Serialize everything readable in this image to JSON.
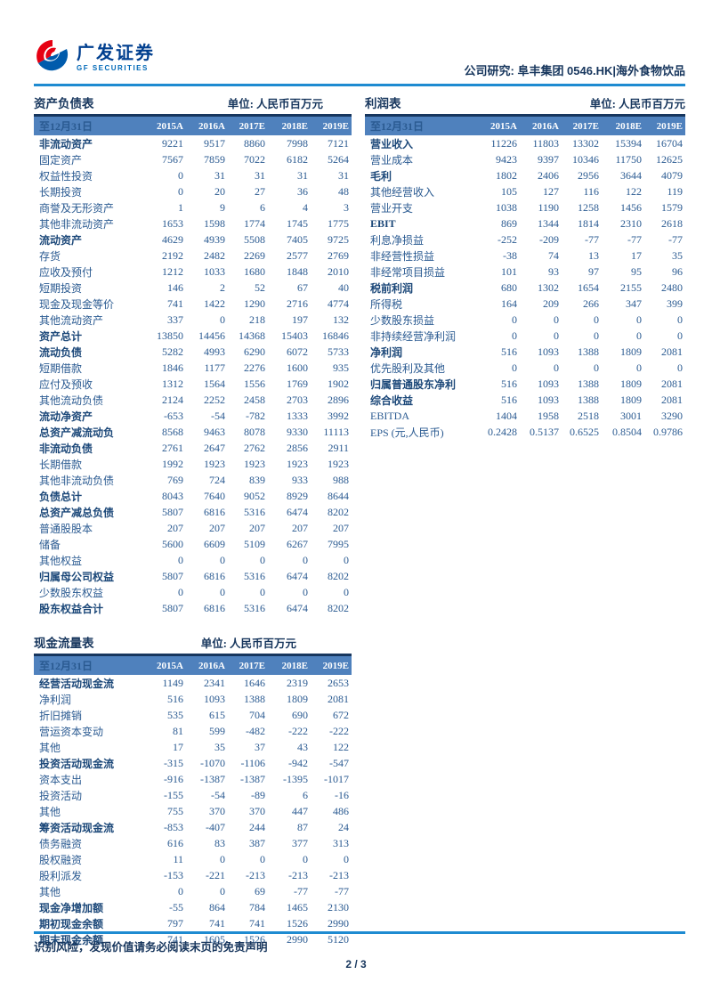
{
  "header": {
    "logo_cn": "广发证券",
    "logo_en": "GF SECURITIES",
    "research_line": "公司研究: 阜丰集团 0546.HK|海外食物饮品"
  },
  "colors": {
    "band_bg": "#4f81bd",
    "band_border": "#17365e",
    "body_text": "#2a5a91",
    "heading_text": "#17365d",
    "rule_blue": "#1e8bd1",
    "logo_red": "#e60012",
    "logo_blue": "#005bac"
  },
  "tables": {
    "balance_sheet": {
      "title": "资产负债表",
      "unit": "单位: 人民币百万元",
      "date_header": "至12月31日",
      "years": [
        "2015A",
        "2016A",
        "2017E",
        "2018E",
        "2019E"
      ],
      "rows": [
        {
          "label": "非流动资产",
          "bold": true,
          "values": [
            "9221",
            "9517",
            "8860",
            "7998",
            "7121"
          ]
        },
        {
          "label": "固定资产",
          "bold": false,
          "values": [
            "7567",
            "7859",
            "7022",
            "6182",
            "5264"
          ]
        },
        {
          "label": "权益性投资",
          "bold": false,
          "values": [
            "0",
            "31",
            "31",
            "31",
            "31"
          ]
        },
        {
          "label": "长期投资",
          "bold": false,
          "values": [
            "0",
            "20",
            "27",
            "36",
            "48"
          ]
        },
        {
          "label": "商誉及无形资产",
          "bold": false,
          "values": [
            "1",
            "9",
            "6",
            "4",
            "3"
          ]
        },
        {
          "label": "其他非流动资产",
          "bold": false,
          "values": [
            "1653",
            "1598",
            "1774",
            "1745",
            "1775"
          ]
        },
        {
          "label": "流动资产",
          "bold": true,
          "values": [
            "4629",
            "4939",
            "5508",
            "7405",
            "9725"
          ]
        },
        {
          "label": "存货",
          "bold": false,
          "values": [
            "2192",
            "2482",
            "2269",
            "2577",
            "2769"
          ]
        },
        {
          "label": "应收及预付",
          "bold": false,
          "values": [
            "1212",
            "1033",
            "1680",
            "1848",
            "2010"
          ]
        },
        {
          "label": "短期投资",
          "bold": false,
          "values": [
            "146",
            "2",
            "52",
            "67",
            "40"
          ]
        },
        {
          "label": "现金及现金等价",
          "bold": false,
          "values": [
            "741",
            "1422",
            "1290",
            "2716",
            "4774"
          ]
        },
        {
          "label": "其他流动资产",
          "bold": false,
          "values": [
            "337",
            "0",
            "218",
            "197",
            "132"
          ]
        },
        {
          "label": "资产总计",
          "bold": true,
          "values": [
            "13850",
            "14456",
            "14368",
            "15403",
            "16846"
          ]
        },
        {
          "label": "流动负债",
          "bold": true,
          "values": [
            "5282",
            "4993",
            "6290",
            "6072",
            "5733"
          ]
        },
        {
          "label": "短期借款",
          "bold": false,
          "values": [
            "1846",
            "1177",
            "2276",
            "1600",
            "935"
          ]
        },
        {
          "label": "应付及预收",
          "bold": false,
          "values": [
            "1312",
            "1564",
            "1556",
            "1769",
            "1902"
          ]
        },
        {
          "label": "其他流动负债",
          "bold": false,
          "values": [
            "2124",
            "2252",
            "2458",
            "2703",
            "2896"
          ]
        },
        {
          "label": "流动净资产",
          "bold": true,
          "values": [
            "-653",
            "-54",
            "-782",
            "1333",
            "3992"
          ]
        },
        {
          "label": "总资产减流动负",
          "bold": true,
          "values": [
            "8568",
            "9463",
            "8078",
            "9330",
            "11113"
          ]
        },
        {
          "label": "非流动负债",
          "bold": true,
          "values": [
            "2761",
            "2647",
            "2762",
            "2856",
            "2911"
          ]
        },
        {
          "label": "长期借款",
          "bold": false,
          "values": [
            "1992",
            "1923",
            "1923",
            "1923",
            "1923"
          ]
        },
        {
          "label": "其他非流动负债",
          "bold": false,
          "values": [
            "769",
            "724",
            "839",
            "933",
            "988"
          ]
        },
        {
          "label": "负债总计",
          "bold": true,
          "values": [
            "8043",
            "7640",
            "9052",
            "8929",
            "8644"
          ]
        },
        {
          "label": "总资产减总负债",
          "bold": true,
          "values": [
            "5807",
            "6816",
            "5316",
            "6474",
            "8202"
          ]
        },
        {
          "label": "普通股股本",
          "bold": false,
          "values": [
            "207",
            "207",
            "207",
            "207",
            "207"
          ]
        },
        {
          "label": "储备",
          "bold": false,
          "values": [
            "5600",
            "6609",
            "5109",
            "6267",
            "7995"
          ]
        },
        {
          "label": "其他权益",
          "bold": false,
          "values": [
            "0",
            "0",
            "0",
            "0",
            "0"
          ]
        },
        {
          "label": "归属母公司权益",
          "bold": true,
          "values": [
            "5807",
            "6816",
            "5316",
            "6474",
            "8202"
          ]
        },
        {
          "label": "少数股东权益",
          "bold": false,
          "values": [
            "0",
            "0",
            "0",
            "0",
            "0"
          ]
        },
        {
          "label": "股东权益合计",
          "bold": true,
          "values": [
            "5807",
            "6816",
            "5316",
            "6474",
            "8202"
          ]
        }
      ]
    },
    "income_statement": {
      "title": "利润表",
      "unit": "单位: 人民币百万元",
      "date_header": "至12月31日",
      "years": [
        "2015A",
        "2016A",
        "2017E",
        "2018E",
        "2019E"
      ],
      "rows": [
        {
          "label": "营业收入",
          "bold": true,
          "values": [
            "11226",
            "11803",
            "13302",
            "15394",
            "16704"
          ]
        },
        {
          "label": "营业成本",
          "bold": false,
          "values": [
            "9423",
            "9397",
            "10346",
            "11750",
            "12625"
          ]
        },
        {
          "label": "毛利",
          "bold": true,
          "values": [
            "1802",
            "2406",
            "2956",
            "3644",
            "4079"
          ]
        },
        {
          "label": "其他经营收入",
          "bold": false,
          "values": [
            "105",
            "127",
            "116",
            "122",
            "119"
          ]
        },
        {
          "label": "营业开支",
          "bold": false,
          "values": [
            "1038",
            "1190",
            "1258",
            "1456",
            "1579"
          ]
        },
        {
          "label": "EBIT",
          "bold": true,
          "values": [
            "869",
            "1344",
            "1814",
            "2310",
            "2618"
          ]
        },
        {
          "label": "利息净损益",
          "bold": false,
          "values": [
            "-252",
            "-209",
            "-77",
            "-77",
            "-77"
          ]
        },
        {
          "label": "非经营性损益",
          "bold": false,
          "values": [
            "-38",
            "74",
            "13",
            "17",
            "35"
          ]
        },
        {
          "label": "非经常项目损益",
          "bold": false,
          "values": [
            "101",
            "93",
            "97",
            "95",
            "96"
          ]
        },
        {
          "label": "税前利润",
          "bold": true,
          "values": [
            "680",
            "1302",
            "1654",
            "2155",
            "2480"
          ]
        },
        {
          "label": "所得税",
          "bold": false,
          "values": [
            "164",
            "209",
            "266",
            "347",
            "399"
          ]
        },
        {
          "label": "少数股东损益",
          "bold": false,
          "values": [
            "0",
            "0",
            "0",
            "0",
            "0"
          ]
        },
        {
          "label": "非持续经营净利润",
          "bold": false,
          "values": [
            "0",
            "0",
            "0",
            "0",
            "0"
          ]
        },
        {
          "label": "净利润",
          "bold": true,
          "values": [
            "516",
            "1093",
            "1388",
            "1809",
            "2081"
          ]
        },
        {
          "label": "优先股利及其他",
          "bold": false,
          "values": [
            "0",
            "0",
            "0",
            "0",
            "0"
          ]
        },
        {
          "label": "归属普通股东净利",
          "bold": true,
          "values": [
            "516",
            "1093",
            "1388",
            "1809",
            "2081"
          ]
        },
        {
          "label": "综合收益",
          "bold": true,
          "values": [
            "516",
            "1093",
            "1388",
            "1809",
            "2081"
          ]
        },
        {
          "label": "EBITDA",
          "bold": false,
          "values": [
            "1404",
            "1958",
            "2518",
            "3001",
            "3290"
          ]
        },
        {
          "label": "EPS (元,人民币)",
          "bold": false,
          "values": [
            "0.2428",
            "0.5137",
            "0.6525",
            "0.8504",
            "0.9786"
          ]
        }
      ]
    },
    "cash_flow": {
      "title": "现金流量表",
      "unit": "单位: 人民币百万元",
      "date_header": "至12月31日",
      "years": [
        "2015A",
        "2016A",
        "2017E",
        "2018E",
        "2019E"
      ],
      "rows": [
        {
          "label": "经营活动现金流",
          "bold": true,
          "values": [
            "1149",
            "2341",
            "1646",
            "2319",
            "2653"
          ]
        },
        {
          "label": "净利润",
          "bold": false,
          "values": [
            "516",
            "1093",
            "1388",
            "1809",
            "2081"
          ]
        },
        {
          "label": "折旧摊销",
          "bold": false,
          "values": [
            "535",
            "615",
            "704",
            "690",
            "672"
          ]
        },
        {
          "label": "营运资本变动",
          "bold": false,
          "values": [
            "81",
            "599",
            "-482",
            "-222",
            "-222"
          ]
        },
        {
          "label": "其他",
          "bold": false,
          "values": [
            "17",
            "35",
            "37",
            "43",
            "122"
          ]
        },
        {
          "label": "投资活动现金流",
          "bold": true,
          "values": [
            "-315",
            "-1070",
            "-1106",
            "-942",
            "-547"
          ]
        },
        {
          "label": "资本支出",
          "bold": false,
          "values": [
            "-916",
            "-1387",
            "-1387",
            "-1395",
            "-1017"
          ]
        },
        {
          "label": "投资活动",
          "bold": false,
          "values": [
            "-155",
            "-54",
            "-89",
            "6",
            "-16"
          ]
        },
        {
          "label": "其他",
          "bold": false,
          "values": [
            "755",
            "370",
            "370",
            "447",
            "486"
          ]
        },
        {
          "label": "筹资活动现金流",
          "bold": true,
          "values": [
            "-853",
            "-407",
            "244",
            "87",
            "24"
          ]
        },
        {
          "label": "债务融资",
          "bold": false,
          "values": [
            "616",
            "83",
            "387",
            "377",
            "313"
          ]
        },
        {
          "label": "股权融资",
          "bold": false,
          "values": [
            "11",
            "0",
            "0",
            "0",
            "0"
          ]
        },
        {
          "label": "股利派发",
          "bold": false,
          "values": [
            "-153",
            "-221",
            "-213",
            "-213",
            "-213"
          ]
        },
        {
          "label": "其他",
          "bold": false,
          "values": [
            "0",
            "0",
            "69",
            "-77",
            "-77"
          ]
        },
        {
          "label": "现金净增加额",
          "bold": true,
          "values": [
            "-55",
            "864",
            "784",
            "1465",
            "2130"
          ]
        },
        {
          "label": "期初现金余额",
          "bold": true,
          "values": [
            "797",
            "741",
            "741",
            "1526",
            "2990"
          ]
        },
        {
          "label": "期末现金余额",
          "bold": true,
          "values": [
            "741",
            "1605",
            "1526",
            "2990",
            "5120"
          ]
        }
      ]
    }
  },
  "footer": {
    "disclaimer": "识别风险，发现价值请务必阅读末页的免责声明",
    "page_indicator": "2 / 3"
  }
}
